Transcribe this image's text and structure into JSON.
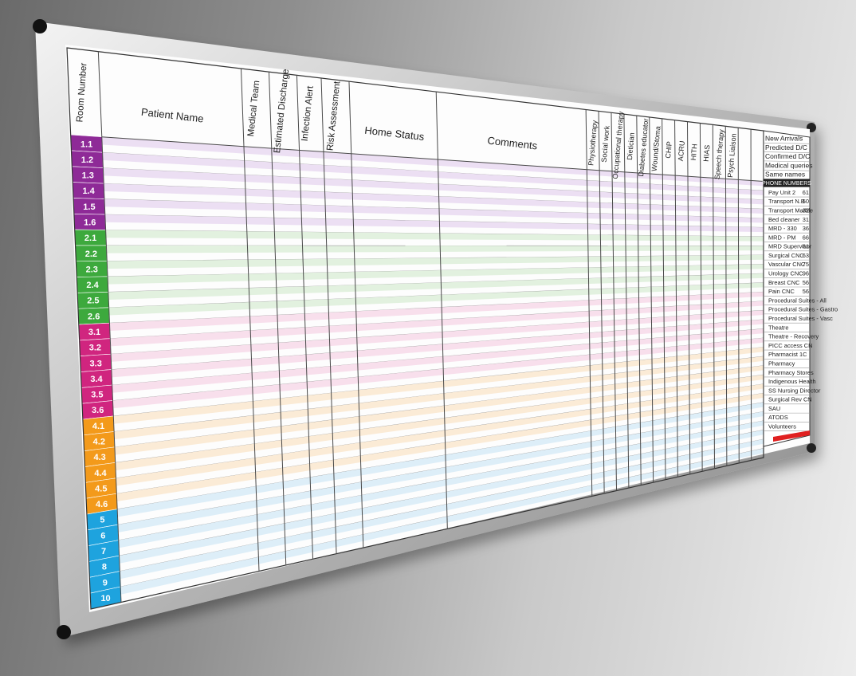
{
  "board": {
    "room_number_header": "Room Number",
    "columns_text": [
      {
        "key": "patient",
        "label": "Patient Name"
      },
      {
        "key": "medical",
        "label": "Medical Team"
      },
      {
        "key": "discharge",
        "label": "Estimated Discharge"
      },
      {
        "key": "infection",
        "label": "Infection Alert"
      },
      {
        "key": "risk",
        "label": "Risk Assessment"
      },
      {
        "key": "home",
        "label": "Home Status"
      },
      {
        "key": "comments",
        "label": "Comments"
      }
    ],
    "columns_services": [
      "Physiotherapy",
      "Social work",
      "Occupational therapy",
      "Dietician",
      "Diabetes educator",
      "Wound/Stoma",
      "CHIP",
      "ACRU",
      "HITH",
      "HIAS",
      "Speech therapy",
      "Psych Liaison",
      "",
      ""
    ],
    "rooms": [
      {
        "label": "1.1",
        "group": 1
      },
      {
        "label": "1.2",
        "group": 1
      },
      {
        "label": "1.3",
        "group": 1
      },
      {
        "label": "1.4",
        "group": 1
      },
      {
        "label": "1.5",
        "group": 1
      },
      {
        "label": "1.6",
        "group": 1
      },
      {
        "label": "2.1",
        "group": 2
      },
      {
        "label": "2.2",
        "group": 2
      },
      {
        "label": "2.3",
        "group": 2
      },
      {
        "label": "2.4",
        "group": 2
      },
      {
        "label": "2.5",
        "group": 2
      },
      {
        "label": "2.6",
        "group": 2
      },
      {
        "label": "3.1",
        "group": 3
      },
      {
        "label": "3.2",
        "group": 3
      },
      {
        "label": "3.3",
        "group": 3
      },
      {
        "label": "3.4",
        "group": 3
      },
      {
        "label": "3.5",
        "group": 3
      },
      {
        "label": "3.6",
        "group": 3
      },
      {
        "label": "4.1",
        "group": 4
      },
      {
        "label": "4.2",
        "group": 4
      },
      {
        "label": "4.3",
        "group": 4
      },
      {
        "label": "4.4",
        "group": 4
      },
      {
        "label": "4.5",
        "group": 4
      },
      {
        "label": "4.6",
        "group": 4
      },
      {
        "label": "5",
        "group": 5
      },
      {
        "label": "6",
        "group": 5
      },
      {
        "label": "7",
        "group": 5
      },
      {
        "label": "8",
        "group": 5
      },
      {
        "label": "9",
        "group": 5
      },
      {
        "label": "10",
        "group": 5
      }
    ],
    "group_colors": {
      "1": {
        "dark": "#8e2a97",
        "light": "#ecdff3"
      },
      "2": {
        "dark": "#3da93d",
        "light": "#e2f1df"
      },
      "3": {
        "dark": "#d0257f",
        "light": "#f8dfec"
      },
      "4": {
        "dark": "#f39a1b",
        "light": "#fbebd6"
      },
      "5": {
        "dark": "#1ea3de",
        "light": "#ddeef8"
      }
    },
    "side_top": [
      "New Arrivals",
      "Predicted D/C",
      "Confirmed D/C",
      "Medical queries",
      "Same names"
    ],
    "phone_header": "PHONE NUMBERS",
    "phones": [
      {
        "name": "Pay Unit 2",
        "num": "61"
      },
      {
        "name": "Transport N.B",
        "num": "50"
      },
      {
        "name": "Transport Marble",
        "num": "32"
      },
      {
        "name": "Bed cleaner",
        "num": "31"
      },
      {
        "name": "MRD - 330",
        "num": "36"
      },
      {
        "name": "MRD - PM",
        "num": "66"
      },
      {
        "name": "MRD Supervisor",
        "num": "61"
      },
      {
        "name": "Surgical CNC",
        "num": "63"
      },
      {
        "name": "Vascular CNC",
        "num": "75"
      },
      {
        "name": "Urology CNC",
        "num": "96"
      },
      {
        "name": "Breast CNC",
        "num": "56"
      },
      {
        "name": "Pain CNC",
        "num": "56"
      },
      {
        "name": "Procedural Suites - All",
        "num": ""
      },
      {
        "name": "Procedural Suites - Gastro",
        "num": ""
      },
      {
        "name": "Procedural Suites - Vasc",
        "num": ""
      },
      {
        "name": "Theatre",
        "num": ""
      },
      {
        "name": "Theatre - Recovery",
        "num": ""
      },
      {
        "name": "PICC access CN",
        "num": ""
      },
      {
        "name": "Pharmacist 1C",
        "num": ""
      },
      {
        "name": "Pharmacy",
        "num": ""
      },
      {
        "name": "Pharmacy Stores",
        "num": ""
      },
      {
        "name": "Indigenous Health",
        "num": ""
      },
      {
        "name": "SS Nursing Director",
        "num": ""
      },
      {
        "name": "Surgical Rev CN",
        "num": ""
      },
      {
        "name": "SAU",
        "num": ""
      },
      {
        "name": "ATODS",
        "num": ""
      },
      {
        "name": "Volunteers",
        "num": ""
      }
    ],
    "accent_red": "#e02020"
  }
}
